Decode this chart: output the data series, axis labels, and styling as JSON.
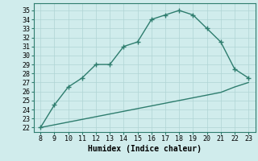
{
  "title": "",
  "xlabel": "Humidex (Indice chaleur)",
  "bg_color": "#d0ecec",
  "line_color": "#2e7d6e",
  "grid_color": "#b0d4d4",
  "x_main": [
    8,
    9,
    10,
    11,
    12,
    13,
    14,
    15,
    16,
    17,
    18,
    19,
    20,
    21,
    22,
    23
  ],
  "y_main": [
    22.0,
    24.5,
    26.5,
    27.5,
    29.0,
    29.0,
    31.0,
    31.5,
    34.0,
    34.5,
    35.0,
    34.5,
    33.0,
    31.5,
    28.5,
    27.5
  ],
  "x_ref": [
    8,
    9,
    10,
    11,
    12,
    13,
    14,
    15,
    16,
    17,
    18,
    19,
    20,
    21,
    22,
    23
  ],
  "y_ref": [
    22.0,
    22.3,
    22.6,
    22.9,
    23.2,
    23.5,
    23.8,
    24.1,
    24.4,
    24.7,
    25.0,
    25.3,
    25.6,
    25.9,
    26.5,
    27.0
  ],
  "xlim": [
    7.5,
    23.5
  ],
  "ylim": [
    21.5,
    35.8
  ],
  "yticks": [
    22,
    23,
    24,
    25,
    26,
    27,
    28,
    29,
    30,
    31,
    32,
    33,
    34,
    35
  ],
  "xticks": [
    8,
    9,
    10,
    11,
    12,
    13,
    14,
    15,
    16,
    17,
    18,
    19,
    20,
    21,
    22,
    23
  ],
  "tick_fontsize": 6,
  "xlabel_fontsize": 7,
  "marker": "+",
  "marker_size": 5,
  "linewidth": 1.0
}
